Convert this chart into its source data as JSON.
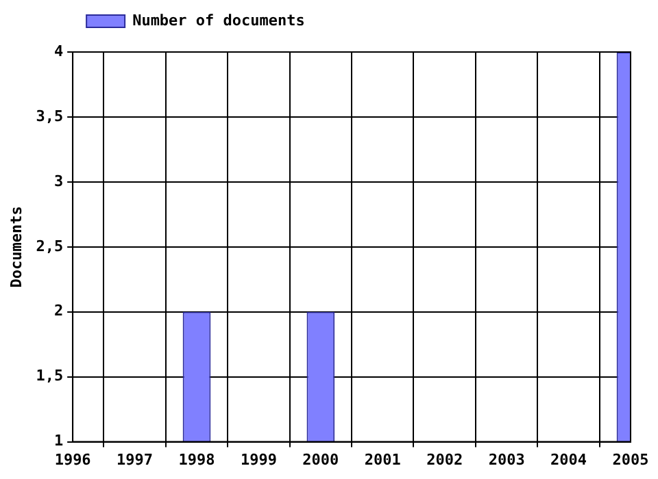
{
  "chart_data": {
    "type": "bar",
    "ylabel": "Documents",
    "x": [
      1998,
      2000,
      2005
    ],
    "series": [
      {
        "name": "Number of documents",
        "color": "#8080ff",
        "values": [
          2,
          2,
          4
        ]
      }
    ],
    "xlim": [
      1996,
      2005
    ],
    "xticks": [
      1996,
      1997,
      1998,
      1999,
      2000,
      2001,
      2002,
      2003,
      2004,
      2005
    ],
    "ylim": [
      1,
      4
    ],
    "yticks": [
      1,
      {
        "value": 1.5,
        "label": "1,5"
      },
      2,
      {
        "value": 2.5,
        "label": "2,5"
      },
      3,
      {
        "value": 3.5,
        "label": "3,5"
      },
      4
    ],
    "grid": true,
    "legend": "top left"
  }
}
